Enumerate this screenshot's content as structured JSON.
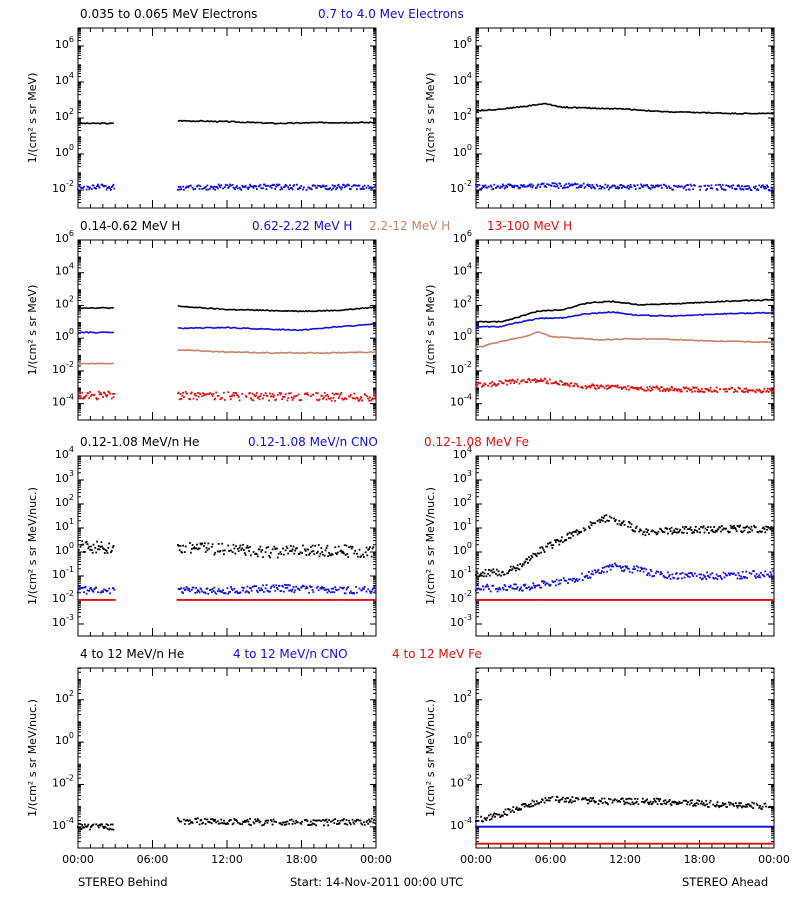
{
  "footer": {
    "left": "STEREO Behind",
    "center": "Start: 14-Nov-2011 00:00 UTC",
    "right": "STEREO Ahead"
  },
  "x_ticks": [
    "00:00",
    "06:00",
    "12:00",
    "18:00",
    "00:00"
  ],
  "colors": {
    "black": "#000000",
    "blue": "#1010d8",
    "tan": "#c8826a",
    "red": "#e01010"
  },
  "rows": [
    {
      "titles": [
        {
          "text": "0.035 to 0.065 MeV Electrons",
          "color": "black"
        },
        {
          "text": "0.7 to 4.0 Mev Electrons",
          "color": "blue"
        }
      ],
      "ylabel": "1/(cm² s sr MeV)",
      "ytick_exp": [
        -2,
        0,
        2,
        4,
        6
      ],
      "ylim_log": [
        -3,
        7
      ]
    },
    {
      "titles": [
        {
          "text": "0.14-0.62 MeV H",
          "color": "black"
        },
        {
          "text": "0.62-2.22 MeV H",
          "color": "blue"
        },
        {
          "text": "2.2-12 MeV H",
          "color": "tan"
        },
        {
          "text": "13-100 MeV H",
          "color": "red"
        }
      ],
      "ylabel": "1/(cm² s sr MeV)",
      "ytick_exp": [
        -4,
        -2,
        0,
        2,
        4,
        6
      ],
      "ylim_log": [
        -5,
        6
      ]
    },
    {
      "titles": [
        {
          "text": "0.12-1.08 MeV/n He",
          "color": "black"
        },
        {
          "text": "0.12-1.08 MeV/n CNO",
          "color": "blue"
        },
        {
          "text": "0.12-1.08 MeV Fe",
          "color": "red"
        }
      ],
      "ylabel": "1/(cm² s sr MeV/nuc.)",
      "ytick_exp": [
        -3,
        -2,
        -1,
        0,
        1,
        2,
        3,
        4
      ],
      "ylim_log": [
        -3.5,
        4
      ]
    },
    {
      "titles": [
        {
          "text": "4 to 12 MeV/n He",
          "color": "black"
        },
        {
          "text": "4 to 12 MeV/n CNO",
          "color": "blue"
        },
        {
          "text": "4 to 12 MeV Fe",
          "color": "red"
        }
      ],
      "ylabel": "1/(cm² s sr MeV/nuc.)",
      "ytick_exp": [
        -4,
        -2,
        0,
        2
      ],
      "ylim_log": [
        -5,
        3.5
      ]
    }
  ],
  "chart_data": {
    "type": "scatter",
    "x_unit": "hours since 14-Nov-2011 00:00 UTC",
    "xlim": [
      0,
      24
    ],
    "y_scale": "log",
    "panels": [
      {
        "row": 0,
        "spacecraft": "STEREO Behind",
        "series": [
          {
            "color": "black",
            "style": "line",
            "x": [
              0,
              3,
              3.01,
              8,
              8.01,
              12,
              16,
              20,
              24
            ],
            "log_y": [
              null,
              null,
              null,
              null,
              null,
              null,
              null,
              null,
              null
            ],
            "points": [
              [
                0,
                1.7
              ],
              [
                3,
                1.7
              ],
              [
                8,
                1.85
              ],
              [
                12,
                1.8
              ],
              [
                16,
                1.7
              ],
              [
                20,
                1.75
              ],
              [
                24,
                1.75
              ]
            ],
            "gap": [
              3,
              8
            ]
          },
          {
            "color": "blue",
            "style": "dots",
            "points": [
              [
                0,
                -1.85
              ],
              [
                3,
                -1.85
              ],
              [
                8,
                -1.85
              ],
              [
                12,
                -1.85
              ],
              [
                16,
                -1.85
              ],
              [
                20,
                -1.85
              ],
              [
                24,
                -1.85
              ]
            ],
            "gap": [
              3,
              8
            ],
            "scatter": 0.15
          }
        ]
      },
      {
        "row": 0,
        "spacecraft": "STEREO Ahead",
        "series": [
          {
            "color": "black",
            "style": "line",
            "points": [
              [
                0,
                2.4
              ],
              [
                2,
                2.5
              ],
              [
                4,
                2.65
              ],
              [
                5.5,
                2.8
              ],
              [
                7,
                2.6
              ],
              [
                9,
                2.55
              ],
              [
                12,
                2.5
              ],
              [
                15,
                2.35
              ],
              [
                18,
                2.3
              ],
              [
                21,
                2.25
              ],
              [
                24,
                2.25
              ]
            ]
          },
          {
            "color": "blue",
            "style": "dots",
            "points": [
              [
                0,
                -1.85
              ],
              [
                6,
                -1.75
              ],
              [
                12,
                -1.85
              ],
              [
                18,
                -1.85
              ],
              [
                24,
                -1.9
              ]
            ],
            "scatter": 0.15
          }
        ]
      },
      {
        "row": 1,
        "spacecraft": "STEREO Behind",
        "series": [
          {
            "color": "black",
            "style": "line",
            "points": [
              [
                0,
                1.85
              ],
              [
                3,
                1.85
              ],
              [
                8,
                1.95
              ],
              [
                12,
                1.75
              ],
              [
                15,
                1.7
              ],
              [
                18,
                1.65
              ],
              [
                21,
                1.7
              ],
              [
                24,
                1.9
              ]
            ],
            "gap": [
              3,
              8
            ]
          },
          {
            "color": "blue",
            "style": "line",
            "points": [
              [
                0,
                0.35
              ],
              [
                3,
                0.35
              ],
              [
                8,
                0.6
              ],
              [
                12,
                0.65
              ],
              [
                15,
                0.55
              ],
              [
                18,
                0.5
              ],
              [
                21,
                0.7
              ],
              [
                24,
                0.85
              ]
            ],
            "gap": [
              3,
              8
            ]
          },
          {
            "color": "tan",
            "style": "line",
            "points": [
              [
                0,
                -1.55
              ],
              [
                3,
                -1.55
              ],
              [
                8,
                -0.7
              ],
              [
                12,
                -0.85
              ],
              [
                16,
                -0.9
              ],
              [
                20,
                -0.9
              ],
              [
                24,
                -0.85
              ]
            ],
            "gap": [
              3,
              8
            ]
          },
          {
            "color": "red",
            "style": "dots",
            "points": [
              [
                0,
                -3.5
              ],
              [
                3,
                -3.5
              ],
              [
                8,
                -3.5
              ],
              [
                12,
                -3.55
              ],
              [
                16,
                -3.6
              ],
              [
                20,
                -3.6
              ],
              [
                24,
                -3.6
              ]
            ],
            "gap": [
              3,
              8
            ],
            "scatter": 0.25
          }
        ]
      },
      {
        "row": 1,
        "spacecraft": "STEREO Ahead",
        "series": [
          {
            "color": "black",
            "style": "line",
            "points": [
              [
                0,
                1
              ],
              [
                2,
                1
              ],
              [
                3,
                1.2
              ],
              [
                5,
                1.65
              ],
              [
                7,
                1.75
              ],
              [
                9,
                2.15
              ],
              [
                11,
                2.25
              ],
              [
                13,
                2.05
              ],
              [
                16,
                2.1
              ],
              [
                20,
                2.25
              ],
              [
                24,
                2.35
              ]
            ]
          },
          {
            "color": "blue",
            "style": "line",
            "points": [
              [
                0,
                0.7
              ],
              [
                2,
                0.7
              ],
              [
                3,
                0.9
              ],
              [
                5,
                1.2
              ],
              [
                7,
                1.25
              ],
              [
                9,
                1.5
              ],
              [
                11,
                1.6
              ],
              [
                13,
                1.4
              ],
              [
                16,
                1.35
              ],
              [
                20,
                1.5
              ],
              [
                24,
                1.55
              ]
            ]
          },
          {
            "color": "tan",
            "style": "line",
            "points": [
              [
                0,
                -0.6
              ],
              [
                2,
                -0.2
              ],
              [
                4,
                0.1
              ],
              [
                5,
                0.4
              ],
              [
                6,
                0.1
              ],
              [
                8,
                0
              ],
              [
                10,
                -0.1
              ],
              [
                12,
                -0.05
              ],
              [
                15,
                -0.05
              ],
              [
                18,
                -0.15
              ],
              [
                24,
                -0.25
              ]
            ]
          },
          {
            "color": "red",
            "style": "dots",
            "points": [
              [
                0,
                -2.9
              ],
              [
                2,
                -2.75
              ],
              [
                5,
                -2.55
              ],
              [
                7,
                -2.75
              ],
              [
                9,
                -2.95
              ],
              [
                12,
                -3.05
              ],
              [
                18,
                -3.15
              ],
              [
                24,
                -3.2
              ]
            ],
            "scatter": 0.15
          }
        ]
      },
      {
        "row": 2,
        "spacecraft": "STEREO Behind",
        "series": [
          {
            "color": "black",
            "style": "dots",
            "points": [
              [
                0,
                0.2
              ],
              [
                3,
                0.2
              ],
              [
                8,
                0.2
              ],
              [
                12,
                0.1
              ],
              [
                16,
                0
              ],
              [
                20,
                0.05
              ],
              [
                24,
                0
              ]
            ],
            "gap": [
              3,
              8
            ],
            "scatter": 0.25
          },
          {
            "color": "blue",
            "style": "dots",
            "points": [
              [
                0,
                -1.6
              ],
              [
                3,
                -1.6
              ],
              [
                8,
                -1.6
              ],
              [
                12,
                -1.6
              ],
              [
                16,
                -1.5
              ],
              [
                20,
                -1.6
              ],
              [
                24,
                -1.6
              ]
            ],
            "gap": [
              3,
              8
            ],
            "scatter": 0.15
          },
          {
            "color": "red",
            "style": "dots",
            "points": [
              [
                0,
                -2
              ],
              [
                3,
                -2
              ],
              [
                8,
                -2
              ],
              [
                24,
                -2
              ]
            ],
            "gap": [
              3,
              8
            ],
            "scatter": 0
          }
        ]
      },
      {
        "row": 2,
        "spacecraft": "STEREO Ahead",
        "series": [
          {
            "color": "black",
            "style": "dots",
            "points": [
              [
                0,
                -0.9
              ],
              [
                2,
                -0.85
              ],
              [
                3.5,
                -0.6
              ],
              [
                5,
                0
              ],
              [
                7,
                0.5
              ],
              [
                9,
                1.1
              ],
              [
                10.5,
                1.4
              ],
              [
                12,
                1.2
              ],
              [
                13.5,
                0.8
              ],
              [
                16,
                0.9
              ],
              [
                20,
                0.95
              ],
              [
                24,
                0.95
              ]
            ],
            "scatter": 0.15
          },
          {
            "color": "blue",
            "style": "dots",
            "points": [
              [
                0,
                -1.5
              ],
              [
                4,
                -1.5
              ],
              [
                6,
                -1.3
              ],
              [
                9,
                -1
              ],
              [
                11,
                -0.6
              ],
              [
                13,
                -0.75
              ],
              [
                15,
                -1
              ],
              [
                17,
                -1
              ],
              [
                20,
                -1
              ],
              [
                24,
                -0.9
              ]
            ],
            "scatter": 0.15
          },
          {
            "color": "red",
            "style": "dots",
            "points": [
              [
                0,
                -2
              ],
              [
                24,
                -2
              ]
            ],
            "scatter": 0
          }
        ]
      },
      {
        "row": 3,
        "spacecraft": "STEREO Behind",
        "series": [
          {
            "color": "black",
            "style": "dots",
            "points": [
              [
                0,
                -4
              ],
              [
                3,
                -4
              ],
              [
                8,
                -3.75
              ],
              [
                12,
                -3.75
              ],
              [
                16,
                -3.8
              ],
              [
                20,
                -3.8
              ],
              [
                24,
                -3.75
              ]
            ],
            "gap": [
              3,
              8
            ],
            "scatter": 0.15
          }
        ]
      },
      {
        "row": 3,
        "spacecraft": "STEREO Ahead",
        "series": [
          {
            "color": "black",
            "style": "dots",
            "points": [
              [
                0,
                -3.7
              ],
              [
                2,
                -3.4
              ],
              [
                4,
                -3
              ],
              [
                6,
                -2.7
              ],
              [
                10,
                -2.8
              ],
              [
                14,
                -2.8
              ],
              [
                18,
                -2.9
              ],
              [
                24,
                -3.05
              ]
            ],
            "scatter": 0.15
          },
          {
            "color": "blue",
            "style": "dots",
            "points": [
              [
                3,
                -4
              ],
              [
                5,
                -4
              ],
              [
                9,
                -4
              ],
              [
                10,
                -4
              ]
            ],
            "scatter": 0
          },
          {
            "color": "red",
            "style": "dots",
            "points": [
              [
                2,
                -4.8
              ],
              [
                24,
                -4.8
              ]
            ],
            "scatter": 0
          }
        ]
      }
    ]
  }
}
